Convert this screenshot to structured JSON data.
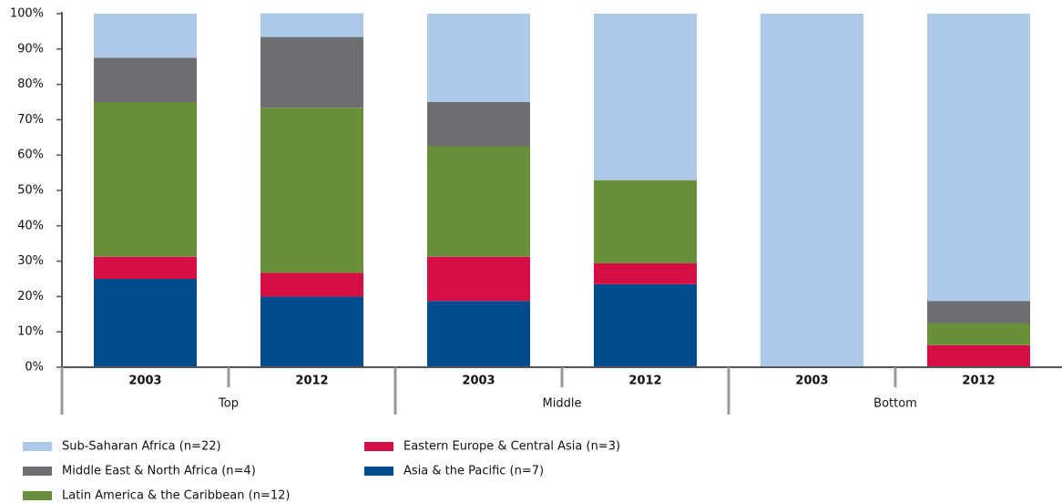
{
  "chart_data": {
    "type": "stacked-bar",
    "categories": [
      "2003",
      "2012",
      "2003",
      "2012",
      "2003",
      "2012"
    ],
    "groups": [
      "Top",
      "Middle",
      "Bottom"
    ],
    "series": [
      {
        "name": "Sub-Saharan Africa (n=22)",
        "color": "#adc8e8",
        "values": [
          12.5,
          6.7,
          25,
          47.1,
          100,
          81.25
        ]
      },
      {
        "name": "Middle East & North Africa (n=4)",
        "color": "#6d6e71",
        "values": [
          12.5,
          20,
          12.5,
          0,
          0,
          6.25
        ]
      },
      {
        "name": "Latin America & the Caribbean (n=12)",
        "color": "#6a8f3a",
        "values": [
          43.75,
          46.7,
          31.25,
          23.5,
          0,
          6.25
        ]
      },
      {
        "name": "Eastern Europe & Central Asia (n=3)",
        "color": "#d50f45",
        "values": [
          6.25,
          6.7,
          12.5,
          5.9,
          0,
          6.25
        ]
      },
      {
        "name": "Asia & the Pacific (n=7)",
        "color": "#004b8d",
        "values": [
          25,
          20,
          18.75,
          23.5,
          0,
          0
        ]
      }
    ],
    "ylim": [
      0,
      100
    ],
    "yticks": [
      {
        "value": 0,
        "label": "0%"
      },
      {
        "value": 10,
        "label": "10%"
      },
      {
        "value": 20,
        "label": "20%"
      },
      {
        "value": 30,
        "label": "30%"
      },
      {
        "value": 40,
        "label": "40%"
      },
      {
        "value": 50,
        "label": "50%"
      },
      {
        "value": 60,
        "label": "60%"
      },
      {
        "value": 70,
        "label": "70%"
      },
      {
        "value": 80,
        "label": "80%"
      },
      {
        "value": 90,
        "label": "90%"
      },
      {
        "value": 100,
        "label": "100%"
      }
    ]
  }
}
